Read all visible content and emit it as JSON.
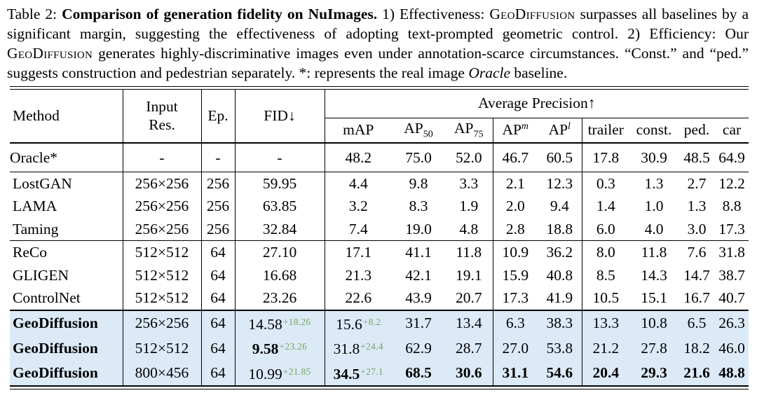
{
  "colors": {
    "highlight": "#dceaf7",
    "gain_green": "#72a85e",
    "text": "#000000",
    "background": "#ffffff"
  },
  "caption": {
    "segments": [
      {
        "t": "Table 2: "
      },
      {
        "t": "Comparison of generation fidelity on NuImages.",
        "b": true
      },
      {
        "t": " 1) Effectiveness: "
      },
      {
        "t": "GeoDiffusion",
        "sc": true
      },
      {
        "t": " surpasses all baselines by a significant margin, suggesting the effectiveness of adopting text-prompted geometric control. 2) Efficiency: Our "
      },
      {
        "t": "GeoDiffusion",
        "sc": true
      },
      {
        "t": " generates highly-discriminative images even under annotation-scarce circumstances. “Const.” and “ped.” suggests construction and pedestrian separately. *: represents the real image "
      },
      {
        "t": "Oracle",
        "i": true
      },
      {
        "t": " baseline."
      }
    ]
  },
  "table": {
    "header": {
      "method": "Method",
      "res": "Input\nRes.",
      "ep": "Ep.",
      "fid": "FID↓",
      "ap_group": "Average Precision↑",
      "cols": [
        {
          "key": "map",
          "label": "mAP"
        },
        {
          "key": "ap50",
          "label": "AP",
          "sub": "50"
        },
        {
          "key": "ap75",
          "label": "AP",
          "sub": "75"
        },
        {
          "key": "apm",
          "label": "AP",
          "sup": "m"
        },
        {
          "key": "apl",
          "label": "AP",
          "sup": "l"
        },
        {
          "key": "trailer",
          "label": "trailer"
        },
        {
          "key": "const",
          "label": "const."
        },
        {
          "key": "ped",
          "label": "ped."
        },
        {
          "key": "car",
          "label": "car"
        }
      ]
    },
    "sections": [
      {
        "name": "oracle",
        "highlight": false,
        "rows": [
          {
            "method": "Oracle*",
            "res": "-",
            "ep": "-",
            "fid": {
              "v": "-"
            },
            "ap": [
              {
                "v": "48.2"
              },
              {
                "v": "75.0"
              },
              {
                "v": "52.0"
              },
              {
                "v": "46.7"
              },
              {
                "v": "60.5"
              },
              {
                "v": "17.8"
              },
              {
                "v": "30.9"
              },
              {
                "v": "48.5"
              },
              {
                "v": "64.9"
              }
            ]
          }
        ]
      },
      {
        "name": "gan-baselines",
        "highlight": false,
        "rows": [
          {
            "method": "LostGAN",
            "res": "256×256",
            "ep": "256",
            "fid": {
              "v": "59.95"
            },
            "ap": [
              {
                "v": "4.4"
              },
              {
                "v": "9.8"
              },
              {
                "v": "3.3"
              },
              {
                "v": "2.1"
              },
              {
                "v": "12.3"
              },
              {
                "v": "0.3"
              },
              {
                "v": "1.3"
              },
              {
                "v": "2.7"
              },
              {
                "v": "12.2"
              }
            ]
          },
          {
            "method": "LAMA",
            "res": "256×256",
            "ep": "256",
            "fid": {
              "v": "63.85"
            },
            "ap": [
              {
                "v": "3.2"
              },
              {
                "v": "8.3"
              },
              {
                "v": "1.9"
              },
              {
                "v": "2.0"
              },
              {
                "v": "9.4"
              },
              {
                "v": "1.4"
              },
              {
                "v": "1.0"
              },
              {
                "v": "1.3"
              },
              {
                "v": "8.8"
              }
            ]
          },
          {
            "method": "Taming",
            "res": "256×256",
            "ep": "256",
            "fid": {
              "v": "32.84"
            },
            "ap": [
              {
                "v": "7.4"
              },
              {
                "v": "19.0"
              },
              {
                "v": "4.8"
              },
              {
                "v": "2.8"
              },
              {
                "v": "18.8"
              },
              {
                "v": "6.0"
              },
              {
                "v": "4.0"
              },
              {
                "v": "3.0"
              },
              {
                "v": "17.3"
              }
            ]
          }
        ]
      },
      {
        "name": "diffusion-baselines",
        "highlight": false,
        "rows": [
          {
            "method": "ReCo",
            "res": "512×512",
            "ep": "64",
            "fid": {
              "v": "27.10"
            },
            "ap": [
              {
                "v": "17.1"
              },
              {
                "v": "41.1"
              },
              {
                "v": "11.8"
              },
              {
                "v": "10.9"
              },
              {
                "v": "36.2"
              },
              {
                "v": "8.0"
              },
              {
                "v": "11.8"
              },
              {
                "v": "7.6"
              },
              {
                "v": "31.8"
              }
            ]
          },
          {
            "method": "GLIGEN",
            "res": "512×512",
            "ep": "64",
            "fid": {
              "v": "16.68"
            },
            "ap": [
              {
                "v": "21.3"
              },
              {
                "v": "42.1"
              },
              {
                "v": "19.1"
              },
              {
                "v": "15.9"
              },
              {
                "v": "40.8"
              },
              {
                "v": "8.5"
              },
              {
                "v": "14.3"
              },
              {
                "v": "14.7"
              },
              {
                "v": "38.7"
              }
            ]
          },
          {
            "method": "ControlNet",
            "res": "512×512",
            "ep": "64",
            "fid": {
              "v": "23.26"
            },
            "ap": [
              {
                "v": "22.6"
              },
              {
                "v": "43.9"
              },
              {
                "v": "20.7"
              },
              {
                "v": "17.3"
              },
              {
                "v": "41.9"
              },
              {
                "v": "10.5"
              },
              {
                "v": "15.1"
              },
              {
                "v": "16.7"
              },
              {
                "v": "40.7"
              }
            ]
          }
        ]
      },
      {
        "name": "geodiffusion",
        "highlight": true,
        "rows": [
          {
            "method": "GeoDiffusion",
            "method_bold": true,
            "res": "256×256",
            "ep": "64",
            "fid": {
              "v": "14.58",
              "gain": "+18.26"
            },
            "ap": [
              {
                "v": "15.6",
                "gain": "+8.2"
              },
              {
                "v": "31.7"
              },
              {
                "v": "13.4"
              },
              {
                "v": "6.3"
              },
              {
                "v": "38.3"
              },
              {
                "v": "13.3"
              },
              {
                "v": "10.8"
              },
              {
                "v": "6.5"
              },
              {
                "v": "26.3"
              }
            ]
          },
          {
            "method": "GeoDiffusion",
            "method_bold": true,
            "res": "512×512",
            "ep": "64",
            "fid": {
              "v": "9.58",
              "gain": "+23.26",
              "bold": true
            },
            "ap": [
              {
                "v": "31.8",
                "gain": "+24.4"
              },
              {
                "v": "62.9"
              },
              {
                "v": "28.7"
              },
              {
                "v": "27.0"
              },
              {
                "v": "53.8"
              },
              {
                "v": "21.2"
              },
              {
                "v": "27.8"
              },
              {
                "v": "18.2"
              },
              {
                "v": "46.0"
              }
            ]
          },
          {
            "method": "GeoDiffusion",
            "method_bold": true,
            "res": "800×456",
            "ep": "64",
            "fid": {
              "v": "10.99",
              "gain": "+21.85"
            },
            "ap": [
              {
                "v": "34.5",
                "gain": "+27.1",
                "bold": true
              },
              {
                "v": "68.5",
                "bold": true
              },
              {
                "v": "30.6",
                "bold": true
              },
              {
                "v": "31.1",
                "bold": true
              },
              {
                "v": "54.6",
                "bold": true
              },
              {
                "v": "20.4",
                "bold": true
              },
              {
                "v": "29.3",
                "bold": true
              },
              {
                "v": "21.6",
                "bold": true
              },
              {
                "v": "48.8",
                "bold": true
              }
            ]
          }
        ]
      }
    ]
  }
}
